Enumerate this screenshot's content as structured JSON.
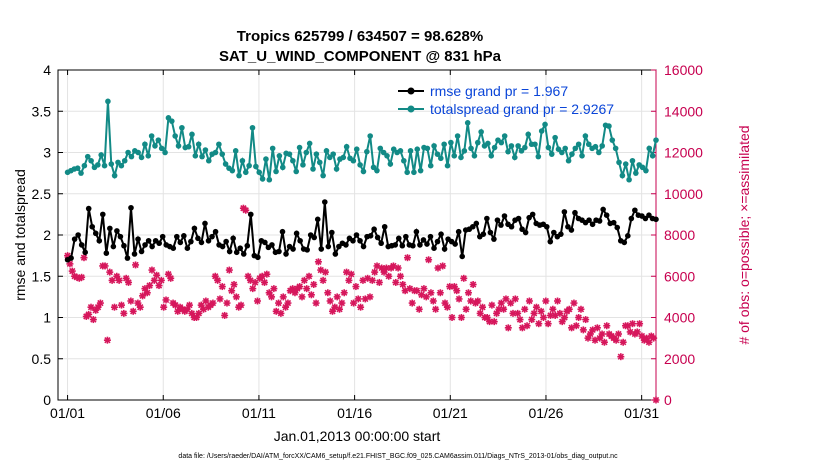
{
  "chart_data": {
    "type": "line",
    "title_line1": "Tropics 625799 / 634507 = 98.628%",
    "title_line2": "SAT_U_WIND_COMPONENT @ 831 hPa",
    "xlabel": "Jan.01,2013 00:00:00 start",
    "ylabel_left": "rmse and totalspread",
    "ylabel_right": "# of obs: o=possible; ×=assimilated",
    "footnote": "data file: /Users/raeder/DAI/ATM_forcXX/CAM6_setup/f.e21.FHIST_BGC.f09_025.CAM6assim.011/Diags_NTrS_2013-01/obs_diag_output.nc",
    "xlim": [
      0.5,
      31.75
    ],
    "ylim_left": [
      0,
      4
    ],
    "ylim_right": [
      0,
      16000
    ],
    "x_ticks": [
      1,
      6,
      11,
      16,
      21,
      26,
      31
    ],
    "x_tick_labels": [
      "01/01",
      "01/06",
      "01/11",
      "01/16",
      "01/21",
      "01/26",
      "01/31"
    ],
    "y_left_ticks": [
      "0",
      "0.5",
      "1",
      "1.5",
      "2",
      "2.5",
      "3",
      "3.5",
      "4"
    ],
    "y_right_ticks": [
      "0",
      "2000",
      "4000",
      "6000",
      "8000",
      "10000",
      "12000",
      "14000",
      "16000"
    ],
    "grid": true,
    "legend_position": "top-right",
    "colors": {
      "rmse": "#000000",
      "totalspread": "#128a86",
      "obs": "#d6175c",
      "legend_text": "#0a45d8",
      "right_axis": "#c7004f"
    },
    "series": [
      {
        "name": "rmse",
        "legend": "rmse grand pr = 1.967",
        "values": [
          1.7,
          1.72,
          1.95,
          2.0,
          1.88,
          1.79,
          2.32,
          2.1,
          2.02,
          1.93,
          2.25,
          1.78,
          2.08,
          1.86,
          2.05,
          1.98,
          1.87,
          1.72,
          2.33,
          1.77,
          1.95,
          1.8,
          1.88,
          1.93,
          1.86,
          1.93,
          1.9,
          1.98,
          1.88,
          1.86,
          1.84,
          1.98,
          1.91,
          1.99,
          1.84,
          1.92,
          2.08,
          1.96,
          1.91,
          2.14,
          1.93,
          1.98,
          2.04,
          1.88,
          1.86,
          1.92,
          1.8,
          1.96,
          1.79,
          1.84,
          1.77,
          1.87,
          2.25,
          1.75,
          1.73,
          1.93,
          1.91,
          1.85,
          1.88,
          1.79,
          1.8,
          2.04,
          1.77,
          1.86,
          1.83,
          2.02,
          1.93,
          1.83,
          1.82,
          2.0,
          1.97,
          2.19,
          1.83,
          2.4,
          1.86,
          2.03,
          1.77,
          1.86,
          1.9,
          1.88,
          1.96,
          1.93,
          2.0,
          1.93,
          1.86,
          1.98,
          1.99,
          2.07,
          1.97,
          1.9,
          2.1,
          1.86,
          1.87,
          1.88,
          1.96,
          1.87,
          1.98,
          1.88,
          1.87,
          2.04,
          1.88,
          1.94,
          1.89,
          1.98,
          1.84,
          1.92,
          2.01,
          1.83,
          1.95,
          1.92,
          1.89,
          2.04,
          1.74,
          2.06,
          2.07,
          2.1,
          2.14,
          1.98,
          2.01,
          2.2,
          2.03,
          1.95,
          2.18,
          2.12,
          2.23,
          2.13,
          2.1,
          2.18,
          2.2,
          2.07,
          2.03,
          2.21,
          2.25,
          2.14,
          2.12,
          2.13,
          2.1,
          1.92,
          2.03,
          1.98,
          2.01,
          2.28,
          2.1,
          2.06,
          2.27,
          2.2,
          2.18,
          2.15,
          2.18,
          2.13,
          2.18,
          2.17,
          2.31,
          2.24,
          2.14,
          2.15,
          2.09,
          1.93,
          1.91,
          1.99,
          2.2,
          2.3,
          2.24,
          2.23,
          2.2,
          2.24,
          2.2,
          2.19
        ]
      },
      {
        "name": "totalspread",
        "legend": "totalspread grand pr = 2.9267",
        "values": [
          2.76,
          2.78,
          2.8,
          2.81,
          2.75,
          2.84,
          2.95,
          2.9,
          2.82,
          2.85,
          2.97,
          2.84,
          3.62,
          2.86,
          2.72,
          2.88,
          2.84,
          2.9,
          3.0,
          2.95,
          3.02,
          3.0,
          2.94,
          3.1,
          2.96,
          3.2,
          3.08,
          3.15,
          3.05,
          3.0,
          3.42,
          3.38,
          3.2,
          3.08,
          3.3,
          3.06,
          3.07,
          3.22,
          2.96,
          3.1,
          2.95,
          3.03,
          2.9,
          2.98,
          3.0,
          3.1,
          2.98,
          2.86,
          2.81,
          2.78,
          3.02,
          2.72,
          2.9,
          2.76,
          2.84,
          3.3,
          2.83,
          2.76,
          2.68,
          2.92,
          2.67,
          3.05,
          2.77,
          2.96,
          2.82,
          2.99,
          2.98,
          2.9,
          2.77,
          3.06,
          2.85,
          3.0,
          3.11,
          2.8,
          2.98,
          2.88,
          2.72,
          3.02,
          2.94,
          2.98,
          2.8,
          2.92,
          2.94,
          3.07,
          2.93,
          2.9,
          3.04,
          2.85,
          2.77,
          3.01,
          3.2,
          2.82,
          2.78,
          3.05,
          3.0,
          2.96,
          2.86,
          3.04,
          3.0,
          3.02,
          2.9,
          2.76,
          3.02,
          2.76,
          3.04,
          2.78,
          3.06,
          3.05,
          2.84,
          3.08,
          2.98,
          2.93,
          3.1,
          2.84,
          3.12,
          2.96,
          3.2,
          2.94,
          3.02,
          3.36,
          3.05,
          2.96,
          3.12,
          3.25,
          3.08,
          3.11,
          2.96,
          3.06,
          3.15,
          3.12,
          3.2,
          3.01,
          3.08,
          2.94,
          3.08,
          3.02,
          3.06,
          3.22,
          3.1,
          3.1,
          2.95,
          3.26,
          3.34,
          3.06,
          2.98,
          3.18,
          3.04,
          3.0,
          3.05,
          2.9,
          2.98,
          3.05,
          3.1,
          2.96,
          3.2,
          3.1,
          3.05,
          3.07,
          3.0,
          3.08,
          3.33,
          3.32,
          3.15,
          3.05,
          2.88,
          2.72,
          2.86,
          2.67,
          2.9,
          2.75,
          2.85,
          2.82,
          2.78,
          3.05,
          2.96,
          3.15
        ]
      },
      {
        "name": "obs",
        "legend": "",
        "axis": "right",
        "values": [
          7000,
          6600,
          6250,
          6000,
          5950,
          5900,
          5950,
          6900,
          4050,
          4150,
          4500,
          3900,
          4350,
          4500,
          4700,
          6500,
          6500,
          2900,
          6200,
          5800,
          4500,
          6000,
          5800,
          4600,
          4200,
          5900,
          5700,
          4800,
          4300,
          6550,
          4700,
          4500,
          5050,
          5400,
          5200,
          5550,
          6300,
          5800,
          6050,
          5550,
          5800,
          4500,
          4850,
          6100,
          5900,
          4700,
          4600,
          4300,
          4500,
          4400,
          4300,
          4400,
          4600,
          4200,
          4000,
          4000,
          4200,
          4600,
          4400,
          4800,
          4500,
          4600,
          4700,
          6000,
          5800,
          4900,
          5500,
          4100,
          4700,
          6300,
          5300,
          5600,
          5000,
          4500,
          4600,
          9300,
          9200,
          6000,
          5800,
          5400,
          5700,
          4800,
          5900,
          6000,
          5700,
          6100,
          5200,
          5000,
          5400,
          4300,
          4700,
          4200,
          5000,
          4500,
          4700,
          5300,
          5400,
          5200,
          5400,
          5500,
          5000,
          5800,
          5400,
          6000,
          5100,
          5600,
          4700,
          6700,
          6300,
          5800,
          6200,
          5200,
          4800,
          4300,
          4500,
          5000,
          4400,
          4700,
          5200,
          6200,
          5800,
          6100,
          4700,
          5500,
          4900,
          4500,
          5800,
          4900,
          5900,
          5000,
          5800,
          6200,
          6500,
          5700,
          6400,
          6200,
          6400,
          6000,
          6400,
          6500,
          5700,
          6400,
          6000,
          5600,
          5300,
          6900,
          5400,
          4700,
          5300,
          5300,
          4400,
          5100,
          5400,
          5000,
          6800,
          5200,
          4800,
          4400,
          6400,
          5200,
          6500,
          4700,
          4500,
          5500,
          4000,
          5500,
          5300,
          4900,
          4000,
          5900,
          4400,
          5200,
          4800,
          5600,
          4700,
          4800,
          4200,
          4500,
          4000,
          4000,
          3800,
          4600,
          3800,
          4200,
          4400,
          4700,
          4400,
          4900,
          3500,
          4700,
          4200,
          4900,
          4200,
          3900,
          3500,
          4400,
          3600,
          4800,
          3900,
          4200,
          4500,
          3700,
          4300,
          4000,
          4800,
          3700,
          4100,
          4400,
          4100,
          4800,
          4200,
          3800,
          4000,
          4300,
          4400,
          3500,
          4700,
          3600,
          4000,
          4400,
          3400,
          3900,
          3000,
          3200,
          3400,
          2900,
          3500,
          3000,
          3200,
          2800,
          3600,
          3200,
          3100,
          3000,
          2900,
          3200,
          2100,
          2800,
          3600,
          3600,
          3300,
          3700,
          3200,
          3300,
          3700,
          3100,
          2900,
          3000,
          2800,
          3100,
          3000,
          0
        ]
      }
    ]
  }
}
